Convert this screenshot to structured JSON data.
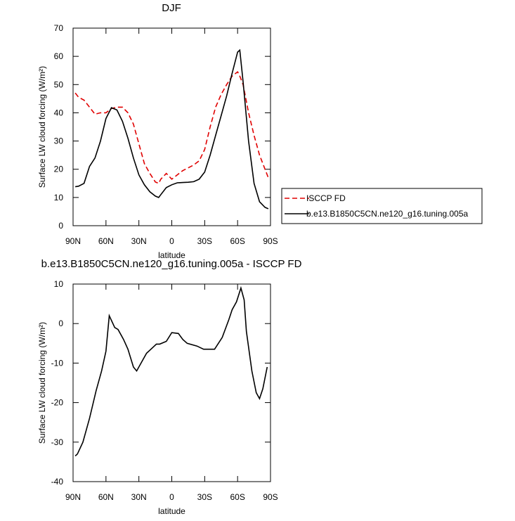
{
  "chart_data": [
    {
      "type": "line",
      "title": "DJF",
      "xlabel": "latitude",
      "ylabel": "Surface LW cloud forcing (W/m²)",
      "x": [
        88,
        85,
        80,
        75,
        70,
        65,
        60,
        55,
        50,
        45,
        40,
        35,
        30,
        25,
        20,
        15,
        12,
        10,
        5,
        0,
        -5,
        -10,
        -15,
        -20,
        -25,
        -30,
        -35,
        -40,
        -45,
        -50,
        -55,
        -60,
        -62,
        -65,
        -70,
        -75,
        -80,
        -85,
        -88
      ],
      "series": [
        {
          "name": "ISCCP FD",
          "color": "#e00000",
          "linestyle": "dashed",
          "values": [
            47,
            45.5,
            44.5,
            42,
            39.5,
            40,
            40,
            41.5,
            42,
            42,
            40,
            36,
            29,
            22,
            18.5,
            15.5,
            15,
            16.5,
            18.5,
            16.5,
            18,
            19.5,
            20.5,
            21.5,
            23,
            27,
            35,
            42,
            46.5,
            50,
            53,
            54.5,
            53,
            50,
            40,
            32,
            25,
            20,
            17
          ]
        },
        {
          "name": "b.e13.B1850C5CN.ne120_g16.tuning.005a",
          "color": "#000000",
          "linestyle": "solid",
          "values": [
            13.8,
            14,
            15,
            21,
            24,
            30,
            38,
            41.8,
            41,
            37,
            31,
            24,
            18,
            14.5,
            12,
            10.5,
            10,
            11,
            13.5,
            14.5,
            15.2,
            15.3,
            15.4,
            15.6,
            16.5,
            19,
            25,
            32,
            39,
            46,
            54,
            61.5,
            62.2,
            51,
            30,
            15,
            8.5,
            6.5,
            6
          ]
        }
      ],
      "xlim": [
        90,
        -90
      ],
      "xticks": [
        {
          "value": 90,
          "label": "90N"
        },
        {
          "value": 60,
          "label": "60N"
        },
        {
          "value": 30,
          "label": "30N"
        },
        0,
        {
          "value": -30,
          "label": "30S"
        },
        {
          "value": -60,
          "label": "60S"
        },
        {
          "value": -90,
          "label": "90S"
        }
      ],
      "ylim": [
        0,
        70
      ],
      "yticks": [
        0,
        10,
        20,
        30,
        40,
        50,
        60,
        70
      ],
      "legend": "right"
    },
    {
      "type": "line",
      "title": "b.e13.B1850C5CN.ne120_g16.tuning.005a - ISCCP FD",
      "xlabel": "latitude",
      "ylabel": "Surface LW cloud forcing (W/m²)",
      "x": [
        88,
        86,
        81,
        75,
        69,
        64,
        60,
        57,
        52,
        49,
        44,
        40,
        35,
        32,
        27,
        23,
        19,
        14,
        11,
        5,
        0,
        -6,
        -10,
        -14,
        -23,
        -29,
        -39,
        -46,
        -52,
        -55,
        -59,
        -63,
        -66,
        -68,
        -73,
        -77,
        -80,
        -83,
        -87
      ],
      "values": [
        -33.5,
        -33,
        -30,
        -24,
        -17,
        -12,
        -7,
        2,
        -1,
        -1.5,
        -4,
        -6.5,
        -11,
        -12,
        -9.5,
        -7.5,
        -6.5,
        -5.2,
        -5.2,
        -4.5,
        -2.3,
        -2.5,
        -4,
        -5,
        -5.7,
        -6.5,
        -6.5,
        -3.5,
        1,
        3.5,
        5.5,
        9,
        6,
        -2,
        -12,
        -17.5,
        -19,
        -16.5,
        -11
      ],
      "color": "#000000",
      "xlim": [
        90,
        -90
      ],
      "xticks": [
        {
          "value": 90,
          "label": "90N"
        },
        {
          "value": 60,
          "label": "60N"
        },
        {
          "value": 30,
          "label": "30N"
        },
        0,
        {
          "value": -30,
          "label": "30S"
        },
        {
          "value": -60,
          "label": "60S"
        },
        {
          "value": -90,
          "label": "90S"
        }
      ],
      "ylim": [
        -40,
        10
      ],
      "yticks": [
        -40,
        -30,
        -20,
        -10,
        0,
        10
      ]
    }
  ]
}
